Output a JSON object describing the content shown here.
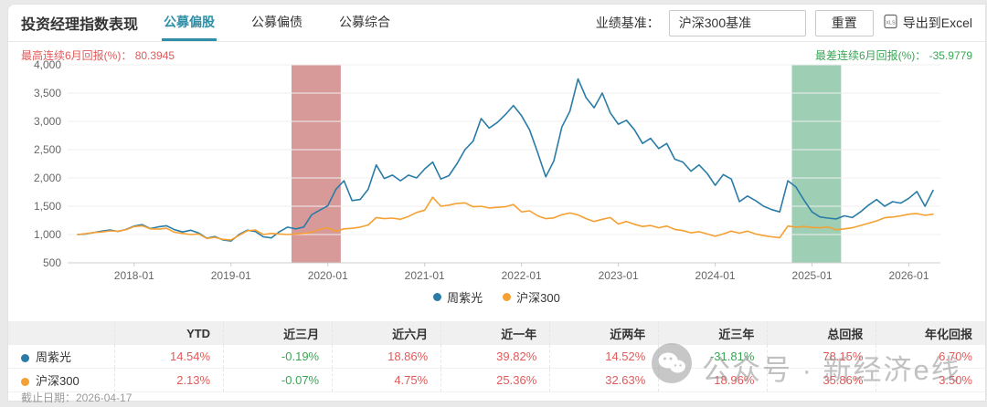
{
  "header": {
    "title": "投资经理指数表现",
    "tabs": [
      {
        "label": "公募偏股",
        "active": true
      },
      {
        "label": "公募偏债",
        "active": false
      },
      {
        "label": "公募综合",
        "active": false
      }
    ],
    "benchmark_label": "业绩基准：",
    "benchmark_value": "沪深300基准",
    "reset_label": "重置",
    "export_label": "导出到Excel",
    "excel_badge": "XLS"
  },
  "stats": {
    "best_label": "最高连续6月回报(%)：",
    "best_value": "80.3945",
    "worst_label": "最差连续6月回报(%)：",
    "worst_value": "-35.9779"
  },
  "chart_data": {
    "type": "line",
    "title": "",
    "xlabel": "",
    "ylabel": "",
    "ylim": [
      500,
      4000
    ],
    "grid": true,
    "legend_position": "bottom",
    "y_tick_labels": [
      "500",
      "1,000",
      "1,500",
      "2,000",
      "2,500",
      "3,000",
      "3,500",
      "4,000"
    ],
    "x_tick_labels": [
      "2018-01",
      "2019-01",
      "2020-01",
      "2021-01",
      "2022-01",
      "2023-01",
      "2024-01",
      "2025-01",
      "2026-01"
    ],
    "months": [
      "2017-06",
      "2017-07",
      "2017-08",
      "2017-09",
      "2017-10",
      "2017-11",
      "2017-12",
      "2018-01",
      "2018-02",
      "2018-03",
      "2018-04",
      "2018-05",
      "2018-06",
      "2018-07",
      "2018-08",
      "2018-09",
      "2018-10",
      "2018-11",
      "2018-12",
      "2019-01",
      "2019-02",
      "2019-03",
      "2019-04",
      "2019-05",
      "2019-06",
      "2019-07",
      "2019-08",
      "2019-09",
      "2019-10",
      "2019-11",
      "2019-12",
      "2020-01",
      "2020-02",
      "2020-03",
      "2020-04",
      "2020-05",
      "2020-06",
      "2020-07",
      "2020-08",
      "2020-09",
      "2020-10",
      "2020-11",
      "2020-12",
      "2021-01",
      "2021-02",
      "2021-03",
      "2021-04",
      "2021-05",
      "2021-06",
      "2021-07",
      "2021-08",
      "2021-09",
      "2021-10",
      "2021-11",
      "2021-12",
      "2022-01",
      "2022-02",
      "2022-03",
      "2022-04",
      "2022-05",
      "2022-06",
      "2022-07",
      "2022-08",
      "2022-09",
      "2022-10",
      "2022-11",
      "2022-12",
      "2023-01",
      "2023-02",
      "2023-03",
      "2023-04",
      "2023-05",
      "2023-06",
      "2023-07",
      "2023-08",
      "2023-09",
      "2023-10",
      "2023-11",
      "2023-12",
      "2024-01",
      "2024-02",
      "2024-03",
      "2024-04",
      "2024-05",
      "2024-06",
      "2024-07",
      "2024-08",
      "2024-09",
      "2024-10",
      "2024-11",
      "2024-12",
      "2025-01",
      "2025-02",
      "2025-03",
      "2025-04",
      "2025-05",
      "2025-06",
      "2025-07",
      "2025-08",
      "2025-09",
      "2025-10",
      "2025-11",
      "2025-12",
      "2026-01",
      "2026-02",
      "2026-03",
      "2026-04"
    ],
    "series": [
      {
        "name": "周紫光",
        "color": "#2a7ca6",
        "values": [
          1000,
          1010,
          1035,
          1060,
          1080,
          1055,
          1090,
          1150,
          1175,
          1105,
          1135,
          1155,
          1085,
          1045,
          1075,
          1025,
          935,
          965,
          905,
          885,
          1000,
          1075,
          1055,
          960,
          940,
          1050,
          1130,
          1100,
          1130,
          1350,
          1430,
          1510,
          1800,
          1950,
          1600,
          1620,
          1800,
          2230,
          1990,
          2050,
          1950,
          2050,
          2000,
          2160,
          2280,
          1980,
          2040,
          2250,
          2500,
          2650,
          3050,
          2880,
          2980,
          3120,
          3280,
          3100,
          2850,
          2450,
          2020,
          2300,
          2900,
          3180,
          3750,
          3420,
          3240,
          3500,
          3150,
          2950,
          3020,
          2850,
          2610,
          2700,
          2520,
          2610,
          2330,
          2280,
          2120,
          2230,
          2080,
          1870,
          2060,
          1980,
          1580,
          1680,
          1600,
          1500,
          1440,
          1400,
          1950,
          1840,
          1610,
          1400,
          1310,
          1290,
          1275,
          1330,
          1300,
          1400,
          1520,
          1620,
          1500,
          1580,
          1555,
          1640,
          1760,
          1500,
          1780
        ]
      },
      {
        "name": "沪深300",
        "color": "#f5a032",
        "values": [
          1000,
          1015,
          1035,
          1045,
          1065,
          1060,
          1085,
          1140,
          1155,
          1100,
          1095,
          1110,
          1040,
          1020,
          1000,
          1010,
          930,
          950,
          915,
          905,
          985,
          1065,
          1080,
          1000,
          1020,
          1010,
          1000,
          1010,
          1020,
          1040,
          1090,
          1120,
          1060,
          1100,
          1110,
          1130,
          1170,
          1300,
          1280,
          1290,
          1270,
          1320,
          1390,
          1430,
          1660,
          1500,
          1520,
          1550,
          1560,
          1490,
          1500,
          1470,
          1480,
          1490,
          1530,
          1400,
          1420,
          1330,
          1280,
          1293,
          1350,
          1380,
          1347,
          1280,
          1230,
          1270,
          1300,
          1185,
          1230,
          1180,
          1142,
          1160,
          1120,
          1150,
          1090,
          1070,
          1030,
          1050,
          1010,
          970,
          1010,
          1060,
          1024,
          1060,
          1010,
          980,
          960,
          945,
          1150,
          1130,
          1140,
          1125,
          1120,
          1130,
          1084,
          1100,
          1120,
          1160,
          1200,
          1240,
          1297,
          1310,
          1330,
          1360,
          1370,
          1340,
          1359
        ]
      }
    ],
    "highlight_bands": [
      {
        "from": "2019-08",
        "to": "2020-02",
        "color": "#d48e8e"
      },
      {
        "from": "2024-10",
        "to": "2025-04",
        "color": "#94caac"
      }
    ]
  },
  "table": {
    "columns": [
      "",
      "YTD",
      "近三月",
      "近六月",
      "近一年",
      "近两年",
      "近三年",
      "总回报",
      "年化回报"
    ],
    "rows": [
      {
        "name": "周紫光",
        "dot_color": "#2a7ca6",
        "values": [
          "14.54%",
          "-0.19%",
          "18.86%",
          "39.82%",
          "14.52%",
          "-31.81%",
          "78.15%",
          "6.70%"
        ]
      },
      {
        "name": "沪深300",
        "dot_color": "#f5a032",
        "values": [
          "2.13%",
          "-0.07%",
          "4.75%",
          "25.36%",
          "32.63%",
          "18.96%",
          "35.86%",
          "3.50%"
        ]
      }
    ]
  },
  "footer": {
    "as_of": "截止日期：2026-04-17"
  },
  "watermark": {
    "text": "公众号 · 新经济e线"
  },
  "colors": {
    "accent_teal": "#2f8fa6",
    "series_blue": "#2a7ca6",
    "series_orange": "#f5a032",
    "positive_red": "#e15a5a",
    "negative_green": "#3aa655",
    "band_red": "#d48e8e",
    "band_green": "#94caac"
  }
}
